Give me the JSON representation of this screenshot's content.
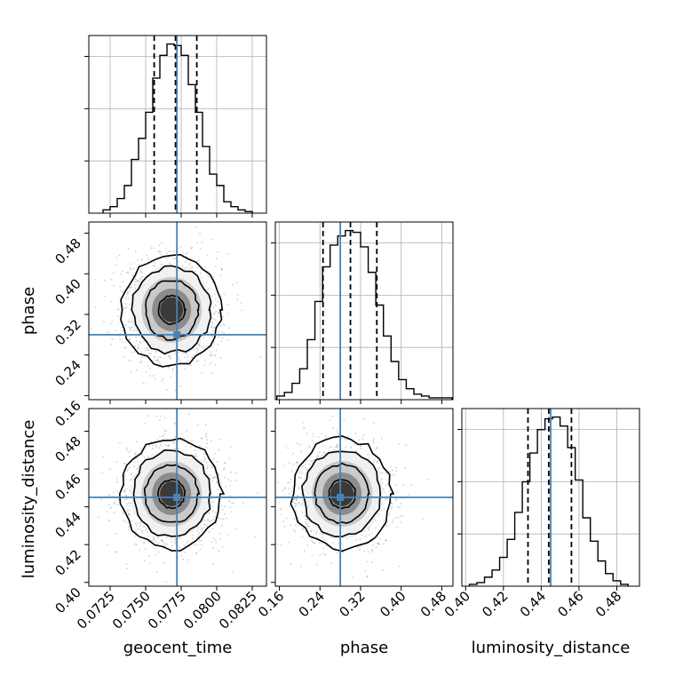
{
  "chart_data": {
    "type": "corner",
    "parameters": [
      "geocent_time",
      "phase",
      "luminosity_distance"
    ],
    "injection": {
      "geocent_time": 0.0772,
      "phase": 0.28,
      "luminosity_distance": 0.445,
      "color": "#4682b4"
    },
    "ranges": {
      "geocent_time": [
        0.071,
        0.0835
      ],
      "phase": [
        0.152,
        0.502
      ],
      "luminosity_distance": [
        0.398,
        0.492
      ]
    },
    "ticks": {
      "geocent_time": [
        "0.0725",
        "0.0750",
        "0.0775",
        "0.0800",
        "0.0825"
      ],
      "phase": [
        "0.16",
        "0.24",
        "0.32",
        "0.40",
        "0.48"
      ],
      "luminosity_distance": [
        "0.40",
        "0.42",
        "0.44",
        "0.46",
        "0.48"
      ]
    },
    "quantiles": {
      "geocent_time": [
        0.0756,
        0.0771,
        0.0786
      ],
      "phase": [
        0.246,
        0.3,
        0.352
      ],
      "luminosity_distance": [
        0.433,
        0.444,
        0.456
      ]
    },
    "histograms": {
      "geocent_time": {
        "edges": [
          0.072,
          0.0725,
          0.073,
          0.0735,
          0.074,
          0.0745,
          0.075,
          0.0755,
          0.076,
          0.0765,
          0.077,
          0.0775,
          0.078,
          0.0785,
          0.079,
          0.0795,
          0.08,
          0.0805,
          0.081,
          0.0815,
          0.082,
          0.0825
        ],
        "counts": [
          2,
          4,
          9,
          17,
          33,
          46,
          62,
          83,
          97,
          104,
          103,
          97,
          79,
          62,
          41,
          24,
          17,
          7,
          4,
          2,
          1
        ]
      },
      "phase": {
        "edges": [
          0.155,
          0.17,
          0.185,
          0.2,
          0.215,
          0.23,
          0.245,
          0.26,
          0.275,
          0.29,
          0.305,
          0.32,
          0.335,
          0.35,
          0.365,
          0.38,
          0.395,
          0.41,
          0.425,
          0.44,
          0.455,
          0.47,
          0.485,
          0.5
        ],
        "counts": [
          2,
          4,
          9,
          17,
          33,
          54,
          73,
          85,
          90,
          93,
          92,
          84,
          70,
          52,
          35,
          21,
          11,
          6,
          3,
          2,
          1,
          1,
          1
        ]
      },
      "luminosity_distance": {
        "edges": [
          0.402,
          0.406,
          0.41,
          0.414,
          0.418,
          0.422,
          0.426,
          0.43,
          0.434,
          0.438,
          0.442,
          0.446,
          0.45,
          0.454,
          0.458,
          0.462,
          0.466,
          0.47,
          0.474,
          0.478,
          0.482,
          0.486
        ],
        "counts": [
          1,
          2,
          5,
          9,
          16,
          26,
          41,
          58,
          74,
          87,
          93,
          94,
          89,
          77,
          59,
          38,
          25,
          14,
          7,
          3,
          1
        ]
      }
    },
    "xlabels": [
      "geocent_time",
      "phase",
      "luminosity_distance"
    ],
    "ylabels": [
      "",
      "phase",
      "luminosity_distance"
    ]
  }
}
